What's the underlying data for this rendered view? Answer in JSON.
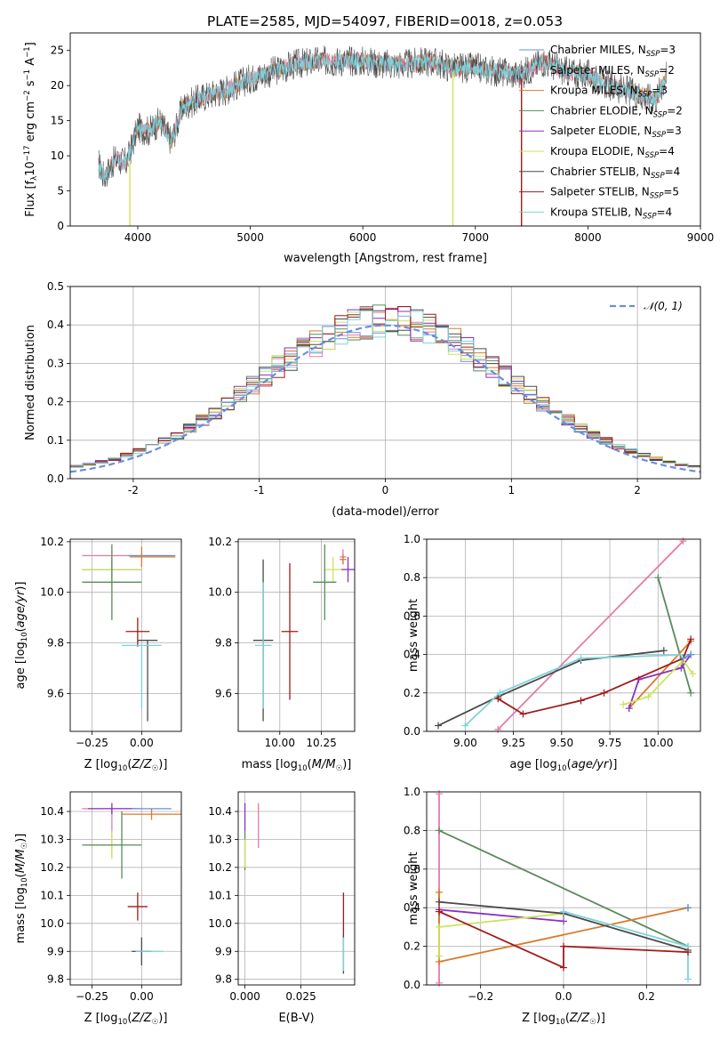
{
  "title": "PLATE=2585, MJD=54097, FIBERID=0018, z=0.053",
  "colors": {
    "Chabrier MILES": "#6a8fd8",
    "Salpeter MILES": "#e57aa8",
    "Kroupa MILES": "#d97a2b",
    "Chabrier ELODIE": "#5a8a5c",
    "Salpeter ELODIE": "#8b2fc0",
    "Kroupa ELODIE": "#cde35a",
    "Chabrier STELIB": "#4a4a4a",
    "Salpeter STELIB": "#a01a1a",
    "Kroupa STELIB": "#7dd3d9",
    "normal": "#6a8fd8"
  },
  "chart_data": [
    {
      "type": "line",
      "panel": "spectrum",
      "xlabel": "wavelength [Angstrom, rest frame]",
      "ylabel": "Flux [f_λ10^-17 erg cm^-2 s^-1 A^-1]",
      "xlim": [
        3400,
        9000
      ],
      "ylim": [
        0,
        27.5
      ],
      "xticks": [
        4000,
        5000,
        6000,
        7000,
        8000,
        9000
      ],
      "yticks": [
        0,
        5,
        10,
        15,
        20,
        25
      ],
      "grid": false,
      "legend_position": "right",
      "series": [
        {
          "name": "Chabrier MILES, N_SSP=3",
          "color": "#6a8fd8"
        },
        {
          "name": "Salpeter MILES, N_SSP=2",
          "color": "#e57aa8"
        },
        {
          "name": "Kroupa MILES, N_SSP=3",
          "color": "#d97a2b"
        },
        {
          "name": "Chabrier ELODIE, N_SSP=2",
          "color": "#5a8a5c"
        },
        {
          "name": "Salpeter ELODIE, N_SSP=3",
          "color": "#8b2fc0"
        },
        {
          "name": "Kroupa ELODIE, N_SSP=4",
          "color": "#cde35a"
        },
        {
          "name": "Chabrier STELIB, N_SSP=4",
          "color": "#4a4a4a"
        },
        {
          "name": "Salpeter STELIB, N_SSP=5",
          "color": "#a01a1a"
        },
        {
          "name": "Kroupa STELIB, N_SSP=4",
          "color": "#7dd3d9"
        }
      ],
      "continuum": {
        "x": [
          3650,
          3700,
          3800,
          3900,
          4000,
          4100,
          4200,
          4300,
          4400,
          4600,
          4800,
          5000,
          5200,
          5400,
          5600,
          5800,
          6000,
          6200,
          6400,
          6600,
          6800,
          7000,
          7200,
          7400,
          7600,
          7800,
          8000,
          8200,
          8400,
          8600,
          8700
        ],
        "y": [
          9,
          7,
          9.5,
          9,
          14,
          13.5,
          15,
          12,
          17,
          18.5,
          19.5,
          21,
          22,
          23,
          23.5,
          23.5,
          23.5,
          23,
          23,
          23.5,
          22.5,
          22.5,
          22,
          21.5,
          23.5,
          22,
          21.5,
          20,
          19,
          18,
          21.5
        ]
      },
      "spikes": [
        {
          "x": 3930,
          "y0": 0,
          "y1": 9,
          "color": "#cde35a"
        },
        {
          "x": 6800,
          "y0": 0,
          "y1": 22,
          "color": "#cde35a"
        },
        {
          "x": 7410,
          "y0": 0,
          "y1": 21,
          "color": "#a01a1a"
        }
      ]
    },
    {
      "type": "histogram",
      "panel": "residuals",
      "xlabel": "(data-model)/error",
      "ylabel": "Normed distribution",
      "xlim": [
        -2.5,
        2.5
      ],
      "ylim": [
        0,
        0.5
      ],
      "xticks": [
        -2,
        -1,
        0,
        1,
        2
      ],
      "yticks": [
        0.0,
        0.1,
        0.2,
        0.3,
        0.4,
        0.5
      ],
      "grid": true,
      "bin_width": 0.1,
      "bin_start": -2.5,
      "legend": "𝒩(0, 1)",
      "legend_position": "top-right",
      "series_colors": [
        "#6a8fd8",
        "#e57aa8",
        "#d97a2b",
        "#5a8a5c",
        "#8b2fc0",
        "#cde35a",
        "#4a4a4a",
        "#a01a1a",
        "#7dd3d9"
      ]
    },
    {
      "type": "scatter",
      "panel": "age-vs-Z",
      "xlabel": "Z [log10(Z/Z☉)]",
      "ylabel": "age  [log10(age/yr)]",
      "xlim": [
        -0.36,
        0.2
      ],
      "ylim": [
        9.45,
        10.21
      ],
      "xticks": [
        -0.25,
        0.0
      ],
      "xtick_labels": [
        "−0.25",
        "0.00"
      ],
      "yticks": [
        9.6,
        9.8,
        10.0,
        10.2
      ],
      "grid": true,
      "points": [
        {
          "x": 0.0,
          "y": 10.145,
          "ex": 0.15,
          "ey": 0.0,
          "color": "#e57aa8",
          "exl": 0.3
        },
        {
          "x": 0.0,
          "y": 10.14,
          "ex": 0.17,
          "ey": 0.04,
          "color": "#d97a2b",
          "exl": 0.06
        },
        {
          "x": 0.05,
          "y": 10.145,
          "ex": 0.12,
          "ey": 0.0,
          "color": "#6a8fd8"
        },
        {
          "x": -0.15,
          "y": 10.09,
          "ex": 0.15,
          "ey": 0.04,
          "color": "#8b2fc0"
        },
        {
          "x": -0.15,
          "y": 10.09,
          "ex": 0.15,
          "ey": 0.06,
          "color": "#cde35a"
        },
        {
          "x": -0.15,
          "y": 10.04,
          "ex": 0.15,
          "ey": 0.15,
          "color": "#5a8a5c"
        },
        {
          "x": -0.02,
          "y": 9.845,
          "ex": 0.06,
          "ey": 0.055,
          "color": "#a01a1a",
          "eyd": 0.06
        },
        {
          "x": 0.03,
          "y": 9.81,
          "ex": 0.05,
          "ey": 0.0,
          "color": "#4a4a4a",
          "eyd": 0.32
        },
        {
          "x": 0.0,
          "y": 9.79,
          "ex": 0.1,
          "ey": 0.0,
          "color": "#7dd3d9",
          "eyd": 0.25
        }
      ]
    },
    {
      "type": "scatter",
      "panel": "age-vs-mass",
      "xlabel": "mass [log10(M/M☉)]",
      "ylabel": "",
      "xlim": [
        9.75,
        10.45
      ],
      "ylim": [
        9.45,
        10.21
      ],
      "xticks": [
        10.0,
        10.25
      ],
      "xtick_labels": [
        "10.00",
        "10.25"
      ],
      "yticks": [
        9.6,
        9.8,
        10.0,
        10.2
      ],
      "grid": true,
      "points": [
        {
          "x": 10.38,
          "y": 10.14,
          "ex": 0.02,
          "ey": 0.03,
          "color": "#e57aa8"
        },
        {
          "x": 10.38,
          "y": 10.13,
          "ex": 0.02,
          "ey": 0.02,
          "color": "#d97a2b"
        },
        {
          "x": 10.41,
          "y": 10.09,
          "ex": 0.04,
          "ey": 0.05,
          "color": "#8b2fc0"
        },
        {
          "x": 10.32,
          "y": 10.09,
          "ex": 0.05,
          "ey": 0.05,
          "color": "#cde35a"
        },
        {
          "x": 10.27,
          "y": 10.04,
          "ex": 0.07,
          "ey": 0.15,
          "color": "#5a8a5c"
        },
        {
          "x": 10.06,
          "y": 9.845,
          "ex": 0.05,
          "ey": 0.27,
          "color": "#a01a1a"
        },
        {
          "x": 9.9,
          "y": 9.81,
          "ex": 0.06,
          "ey": 0.32,
          "color": "#4a4a4a"
        },
        {
          "x": 9.9,
          "y": 9.79,
          "ex": 0.05,
          "ey": 0.25,
          "color": "#7dd3d9"
        }
      ]
    },
    {
      "type": "line",
      "panel": "massweight-vs-age",
      "xlabel": "age  [log10(age/yr)]",
      "ylabel": "mass weight",
      "xlim": [
        8.8,
        10.22
      ],
      "ylim": [
        0.0,
        1.0
      ],
      "xticks": [
        9.0,
        9.25,
        9.5,
        9.75,
        10.0
      ],
      "xtick_labels": [
        "9.00",
        "9.25",
        "9.50",
        "9.75",
        "10.00"
      ],
      "yticks": [
        0.0,
        0.2,
        0.4,
        0.6,
        0.8,
        1.0
      ],
      "grid": true,
      "series": [
        {
          "color": "#e57aa8",
          "x": [
            9.17,
            10.13
          ],
          "y": [
            0.01,
            0.99
          ]
        },
        {
          "color": "#5a8a5c",
          "x": [
            10.0,
            10.17
          ],
          "y": [
            0.8,
            0.2
          ]
        },
        {
          "color": "#d97a2b",
          "x": [
            9.85,
            10.17
          ],
          "y": [
            0.12,
            0.47
          ]
        },
        {
          "color": "#8b2fc0",
          "x": [
            9.85,
            9.9,
            10.12,
            10.17
          ],
          "y": [
            0.12,
            0.27,
            0.33,
            0.4
          ]
        },
        {
          "color": "#cde35a",
          "x": [
            9.82,
            9.95,
            10.13,
            10.18
          ],
          "y": [
            0.14,
            0.18,
            0.37,
            0.3
          ]
        },
        {
          "color": "#4a4a4a",
          "x": [
            8.86,
            9.17,
            9.6,
            10.03
          ],
          "y": [
            0.03,
            0.18,
            0.37,
            0.42
          ]
        },
        {
          "color": "#7dd3d9",
          "x": [
            9.0,
            9.18,
            9.6,
            10.17
          ],
          "y": [
            0.03,
            0.2,
            0.38,
            0.4
          ]
        },
        {
          "color": "#a01a1a",
          "x": [
            9.17,
            9.3,
            9.6,
            9.72,
            10.13,
            10.17
          ],
          "y": [
            0.17,
            0.09,
            0.16,
            0.2,
            0.38,
            0.48
          ]
        },
        {
          "color": "#6a8fd8",
          "x": [
            10.13,
            10.17
          ],
          "y": [
            0.38,
            0.4
          ]
        }
      ]
    },
    {
      "type": "scatter",
      "panel": "mass-vs-Z",
      "xlabel": "Z [log10(Z/Z☉)]",
      "ylabel": "mass [log10(M/M☉)]",
      "xlim": [
        -0.36,
        0.2
      ],
      "ylim": [
        9.78,
        10.47
      ],
      "xticks": [
        -0.25,
        0.0
      ],
      "xtick_labels": [
        "−0.25",
        "0.00"
      ],
      "yticks": [
        9.8,
        9.9,
        10.0,
        10.1,
        10.2,
        10.3,
        10.4
      ],
      "grid": true,
      "points": [
        {
          "x": -0.15,
          "y": 10.41,
          "ex": 0.15,
          "ey": 0.0,
          "color": "#e57aa8",
          "eyd": 0.17
        },
        {
          "x": -0.15,
          "y": 10.41,
          "ex": 0.12,
          "ey": 0.02,
          "color": "#8b2fc0"
        },
        {
          "x": 0.05,
          "y": 10.39,
          "ex": 0.15,
          "ey": 0.02,
          "color": "#d97a2b"
        },
        {
          "x": 0.05,
          "y": 10.41,
          "ex": 0.1,
          "ey": 0.0,
          "color": "#6a8fd8"
        },
        {
          "x": -0.15,
          "y": 10.28,
          "ex": 0.12,
          "ey": 0.05,
          "color": "#cde35a",
          "exr": 0.0
        },
        {
          "x": -0.15,
          "y": 10.28,
          "ex": 0.15,
          "ey": 0.0,
          "color": "#5a8a5c",
          "exr": 0.15
        },
        {
          "x": -0.1,
          "y": 10.28,
          "ex": 0.0,
          "ey": 0.12,
          "color": "#5a8a5c"
        },
        {
          "x": -0.02,
          "y": 10.06,
          "ex": 0.05,
          "ey": 0.05,
          "color": "#a01a1a"
        },
        {
          "x": 0.0,
          "y": 9.9,
          "ex": 0.05,
          "ey": 0.05,
          "color": "#4a4a4a"
        },
        {
          "x": 0.04,
          "y": 9.9,
          "ex": 0.07,
          "ey": 0.0,
          "color": "#7dd3d9"
        }
      ]
    },
    {
      "type": "scatter",
      "panel": "mass-vs-EBV",
      "xlabel": "E(B-V)",
      "ylabel": "",
      "xlim": [
        -0.003,
        0.049
      ],
      "ylim": [
        9.78,
        10.47
      ],
      "xticks": [
        0.0,
        0.025
      ],
      "xtick_labels": [
        "0.000",
        "0.025"
      ],
      "yticks": [
        9.8,
        9.9,
        10.0,
        10.1,
        10.2,
        10.3,
        10.4
      ],
      "grid": true,
      "points": [
        {
          "x": 0.0,
          "y": 10.38,
          "ex": 0.0,
          "ey": 0.05,
          "color": "#8b2fc0"
        },
        {
          "x": 0.006,
          "y": 10.35,
          "ex": 0.0,
          "ey": 0.08,
          "color": "#e57aa8"
        },
        {
          "x": 0.0,
          "y": 10.26,
          "ex": 0.0,
          "ey": 0.07,
          "color": "#5a8a5c"
        },
        {
          "x": 0.0,
          "y": 10.25,
          "ex": 0.0,
          "ey": 0.05,
          "color": "#cde35a"
        },
        {
          "x": 0.044,
          "y": 10.03,
          "ex": 0.0,
          "ey": 0.08,
          "color": "#a01a1a"
        },
        {
          "x": 0.044,
          "y": 9.89,
          "ex": 0.0,
          "ey": 0.07,
          "color": "#4a4a4a"
        },
        {
          "x": 0.044,
          "y": 9.89,
          "ex": 0.0,
          "ey": 0.06,
          "color": "#7dd3d9"
        }
      ]
    },
    {
      "type": "line",
      "panel": "massweight-vs-Z",
      "xlabel": "Z [log10(Z/Z☉)]",
      "ylabel": "mass weight",
      "xlim": [
        -0.33,
        0.33
      ],
      "ylim": [
        0.0,
        1.0
      ],
      "xticks": [
        -0.2,
        0.0,
        0.2
      ],
      "xtick_labels": [
        "−0.2",
        "0.0",
        "0.2"
      ],
      "yticks": [
        0.0,
        0.2,
        0.4,
        0.6,
        0.8,
        1.0
      ],
      "grid": true,
      "series": [
        {
          "color": "#e57aa8",
          "x": [
            -0.3,
            -0.3
          ],
          "y": [
            0.01,
            0.99
          ]
        },
        {
          "color": "#5a8a5c",
          "x": [
            -0.3,
            0.3
          ],
          "y": [
            0.8,
            0.2
          ]
        },
        {
          "color": "#d97a2b",
          "x": [
            -0.3,
            0.3
          ],
          "y": [
            0.12,
            0.4
          ]
        },
        {
          "color": "#d97a2b",
          "x": [
            -0.3,
            -0.3
          ],
          "y": [
            0.12,
            0.48
          ]
        },
        {
          "color": "#8b2fc0",
          "x": [
            -0.3,
            0.0
          ],
          "y": [
            0.39,
            0.33
          ]
        },
        {
          "color": "#cde35a",
          "x": [
            -0.3,
            -0.3,
            0.0
          ],
          "y": [
            0.15,
            0.3,
            0.37
          ]
        },
        {
          "color": "#4a4a4a",
          "x": [
            -0.3,
            0.0,
            0.3
          ],
          "y": [
            0.43,
            0.37,
            0.18
          ]
        },
        {
          "color": "#7dd3d9",
          "x": [
            0.0,
            0.3,
            0.3
          ],
          "y": [
            0.38,
            0.2,
            0.03
          ]
        },
        {
          "color": "#a01a1a",
          "x": [
            -0.3,
            0.0,
            0.0,
            0.3
          ],
          "y": [
            0.38,
            0.09,
            0.2,
            0.17
          ]
        },
        {
          "color": "#6a8fd8",
          "x": [
            0.3,
            0.3
          ],
          "y": [
            0.4,
            0.4
          ]
        }
      ]
    }
  ]
}
